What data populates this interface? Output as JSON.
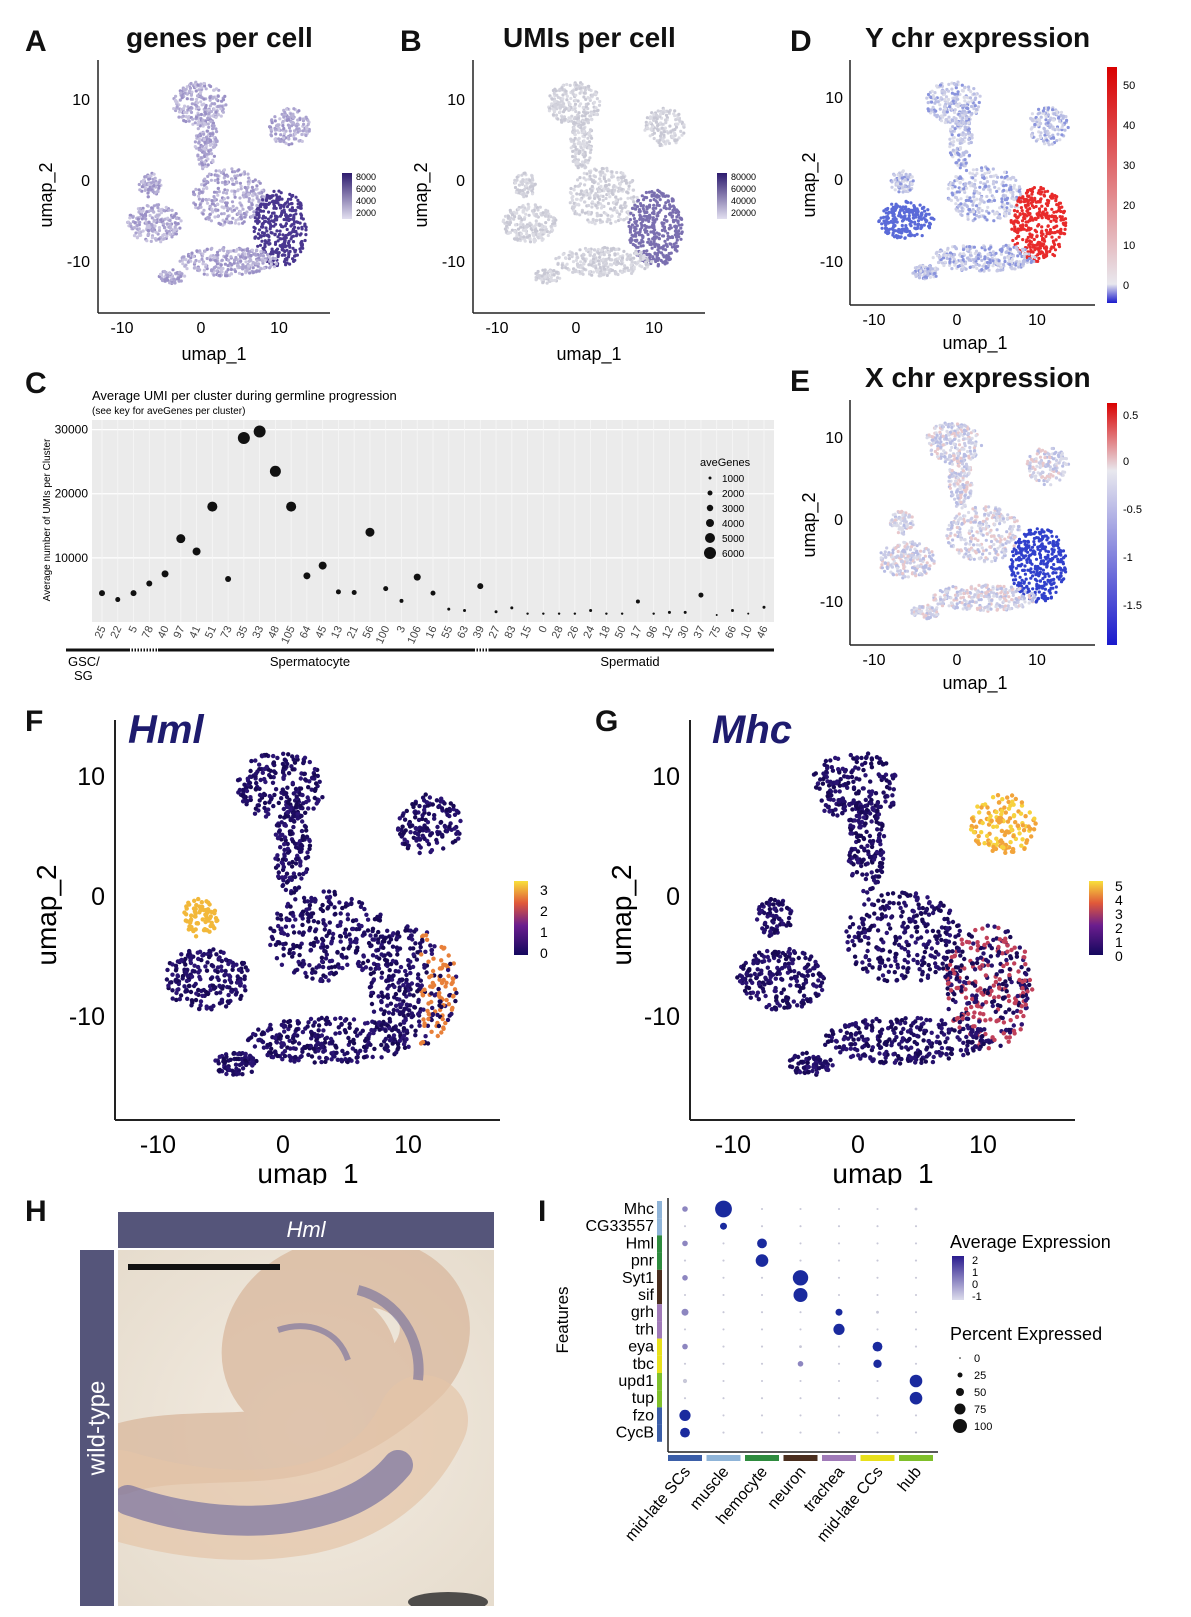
{
  "panels": {
    "A": {
      "label": "A",
      "title": "genes per cell",
      "xlabel": "umap_1",
      "ylabel": "umap_2",
      "xticks": [
        "-10",
        "0",
        "10"
      ],
      "yticks": [
        "10",
        "0",
        "-10"
      ],
      "legend": [
        "8000",
        "6000",
        "4000",
        "2000"
      ]
    },
    "B": {
      "label": "B",
      "title": "UMIs per cell",
      "xlabel": "umap_1",
      "ylabel": "umap_2",
      "xticks": [
        "-10",
        "0",
        "10"
      ],
      "yticks": [
        "10",
        "0",
        "-10"
      ],
      "legend": [
        "80000",
        "60000",
        "40000",
        "20000"
      ]
    },
    "D": {
      "label": "D",
      "title": "Y chr expression",
      "xlabel": "umap_1",
      "ylabel": "umap_2",
      "xticks": [
        "-10",
        "0",
        "10"
      ],
      "yticks": [
        "10",
        "0",
        "-10"
      ],
      "legend": [
        "50",
        "40",
        "30",
        "20",
        "10",
        "0"
      ]
    },
    "E": {
      "label": "E",
      "title": "X chr expression",
      "xlabel": "umap_1",
      "ylabel": "umap_2",
      "xticks": [
        "-10",
        "0",
        "10"
      ],
      "yticks": [
        "10",
        "0",
        "-10"
      ],
      "legend": [
        "0.5",
        "0",
        "-0.5",
        "-1",
        "-1.5"
      ]
    },
    "F": {
      "label": "F",
      "gene": "Hml",
      "xlabel": "umap_1",
      "ylabel": "umap_2",
      "xticks": [
        "-10",
        "0",
        "10"
      ],
      "yticks": [
        "10",
        "0",
        "-10"
      ],
      "legend": [
        "3",
        "2",
        "1",
        "0"
      ]
    },
    "G": {
      "label": "G",
      "gene": "Mhc",
      "xlabel": "umap_1",
      "ylabel": "umap_2",
      "xticks": [
        "-10",
        "0",
        "10"
      ],
      "yticks": [
        "10",
        "0",
        "-10"
      ],
      "legend": [
        "5",
        "4",
        "3",
        "2",
        "1",
        "0"
      ]
    },
    "H": {
      "label": "H",
      "header": "Hml",
      "side": "wild-type"
    },
    "I": {
      "label": "I"
    },
    "C": {
      "label": "C"
    }
  },
  "chart_data": [
    {
      "type": "scatter",
      "panel": "C",
      "title": "Average UMI per cluster during germline progression",
      "subtitle": "(see key for aveGenes per cluster)",
      "ylabel": "Average number of UMIs per Cluster",
      "yticks": [
        "30000",
        "20000",
        "10000"
      ],
      "ylim": [
        0,
        31500
      ],
      "size_legend_title": "aveGenes",
      "size_legend": [
        "1000",
        "2000",
        "3000",
        "4000",
        "5000",
        "6000"
      ],
      "categories": [
        "25",
        "22",
        "5",
        "78",
        "40",
        "97",
        "41",
        "51",
        "73",
        "35",
        "33",
        "48",
        "105",
        "64",
        "45",
        "13",
        "21",
        "56",
        "100",
        "3",
        "106",
        "16",
        "55",
        "63",
        "39",
        "27",
        "83",
        "15",
        "0",
        "28",
        "26",
        "24",
        "18",
        "50",
        "17",
        "96",
        "12",
        "30",
        "37",
        "75",
        "66",
        "10",
        "46"
      ],
      "values": [
        4500,
        3500,
        4500,
        6000,
        7500,
        13000,
        11000,
        18000,
        6700,
        28700,
        29700,
        23500,
        18000,
        7200,
        8800,
        4700,
        4600,
        14000,
        5200,
        3300,
        7000,
        4500,
        2000,
        1800,
        5600,
        1600,
        2200,
        1300,
        1300,
        1300,
        1300,
        1800,
        1300,
        1300,
        3200,
        1300,
        1500,
        1500,
        4200,
        1100,
        1800,
        1300,
        2300
      ],
      "sizes": [
        3,
        2.5,
        3,
        3,
        3.5,
        4.5,
        4,
        5,
        3,
        6,
        6,
        5.5,
        5,
        3.5,
        4,
        2.5,
        2.5,
        4.5,
        2.5,
        2,
        3.5,
        2.5,
        1.5,
        1.5,
        3,
        1.5,
        1.5,
        1.2,
        1.2,
        1.2,
        1.2,
        1.5,
        1.2,
        1.2,
        2,
        1.2,
        1.5,
        1.5,
        2.5,
        1,
        1.5,
        1,
        1.5
      ],
      "stages": [
        "GSC/\nSG",
        "Spermatocyte",
        "Spermatid"
      ]
    },
    {
      "type": "scatter",
      "panel": "I",
      "subtype": "dotplot",
      "ylabel": "Features",
      "features": [
        "Mhc",
        "CG33557",
        "Hml",
        "pnr",
        "Syt1",
        "sif",
        "grh",
        "trh",
        "eya",
        "tbc",
        "upd1",
        "tup",
        "fzo",
        "CycB"
      ],
      "groups": [
        "mid-late SCs",
        "muscle",
        "hemocyte",
        "neuron",
        "trachea",
        "mid-late CCs",
        "hub"
      ],
      "group_colors": [
        "#3b5ea8",
        "#8fb4d8",
        "#2e8b3e",
        "#4a2e1e",
        "#a07ab8",
        "#e8e01a",
        "#7fbf2a"
      ],
      "legend_expr_title": "Average Expression",
      "legend_expr": [
        "2",
        "1",
        "0",
        "-1"
      ],
      "legend_pct_title": "Percent Expressed",
      "legend_pct": [
        "0",
        "25",
        "50",
        "75",
        "100"
      ],
      "matrix": [
        [
          {
            "s": 4,
            "c": 0.5
          },
          {
            "s": 12,
            "c": 1
          },
          {
            "s": 1.5,
            "c": 0.2
          },
          {
            "s": 1.5,
            "c": 0.2
          },
          {
            "s": 1.5,
            "c": 0.2
          },
          {
            "s": 1.5,
            "c": 0.2
          },
          {
            "s": 2,
            "c": 0.2
          }
        ],
        [
          {
            "s": 1.5,
            "c": 0.2
          },
          {
            "s": 5,
            "c": 1
          },
          {
            "s": 1.5,
            "c": 0.2
          },
          {
            "s": 1.5,
            "c": 0.2
          },
          {
            "s": 1.5,
            "c": 0.2
          },
          {
            "s": 1.5,
            "c": 0.2
          },
          {
            "s": 1.5,
            "c": 0.2
          }
        ],
        [
          {
            "s": 4,
            "c": 0.4
          },
          {
            "s": 1.5,
            "c": 0.2
          },
          {
            "s": 7,
            "c": 1
          },
          {
            "s": 1.5,
            "c": 0.2
          },
          {
            "s": 1.5,
            "c": 0.2
          },
          {
            "s": 1.5,
            "c": 0.2
          },
          {
            "s": 1.5,
            "c": 0.2
          }
        ],
        [
          {
            "s": 1.5,
            "c": 0.2
          },
          {
            "s": 1.5,
            "c": 0.2
          },
          {
            "s": 9,
            "c": 1
          },
          {
            "s": 1.5,
            "c": 0.2
          },
          {
            "s": 1.5,
            "c": 0.2
          },
          {
            "s": 1.5,
            "c": 0.2
          },
          {
            "s": 1.5,
            "c": 0.2
          }
        ],
        [
          {
            "s": 4,
            "c": 0.4
          },
          {
            "s": 1.5,
            "c": 0.2
          },
          {
            "s": 1.5,
            "c": 0.2
          },
          {
            "s": 11,
            "c": 1
          },
          {
            "s": 1.5,
            "c": 0.2
          },
          {
            "s": 1.5,
            "c": 0.2
          },
          {
            "s": 1.5,
            "c": 0.2
          }
        ],
        [
          {
            "s": 1.5,
            "c": 0.2
          },
          {
            "s": 1.5,
            "c": 0.2
          },
          {
            "s": 1.5,
            "c": 0.2
          },
          {
            "s": 10,
            "c": 1
          },
          {
            "s": 1.5,
            "c": 0.2
          },
          {
            "s": 1.5,
            "c": 0.2
          },
          {
            "s": 1.5,
            "c": 0.2
          }
        ],
        [
          {
            "s": 5,
            "c": 0.5
          },
          {
            "s": 1.5,
            "c": 0.2
          },
          {
            "s": 1.5,
            "c": 0.2
          },
          {
            "s": 1.5,
            "c": 0.2
          },
          {
            "s": 5,
            "c": 0.9
          },
          {
            "s": 2,
            "c": 0.3
          },
          {
            "s": 1.5,
            "c": 0.2
          }
        ],
        [
          {
            "s": 1.5,
            "c": 0.2
          },
          {
            "s": 1.5,
            "c": 0.2
          },
          {
            "s": 1.5,
            "c": 0.2
          },
          {
            "s": 1.5,
            "c": 0.2
          },
          {
            "s": 8,
            "c": 1
          },
          {
            "s": 1.5,
            "c": 0.2
          },
          {
            "s": 1.5,
            "c": 0.2
          }
        ],
        [
          {
            "s": 4,
            "c": 0.4
          },
          {
            "s": 1.5,
            "c": 0.2
          },
          {
            "s": 1.5,
            "c": 0.2
          },
          {
            "s": 2,
            "c": 0.3
          },
          {
            "s": 1.5,
            "c": 0.2
          },
          {
            "s": 7,
            "c": 1
          },
          {
            "s": 1.5,
            "c": 0.2
          }
        ],
        [
          {
            "s": 1.5,
            "c": 0.2
          },
          {
            "s": 1.5,
            "c": 0.2
          },
          {
            "s": 1.5,
            "c": 0.2
          },
          {
            "s": 4,
            "c": 0.5
          },
          {
            "s": 1.5,
            "c": 0.2
          },
          {
            "s": 6,
            "c": 1
          },
          {
            "s": 1.5,
            "c": 0.2
          }
        ],
        [
          {
            "s": 3,
            "c": 0.3
          },
          {
            "s": 1.5,
            "c": 0.2
          },
          {
            "s": 1.5,
            "c": 0.2
          },
          {
            "s": 1.5,
            "c": 0.2
          },
          {
            "s": 1.5,
            "c": 0.2
          },
          {
            "s": 1.5,
            "c": 0.2
          },
          {
            "s": 9,
            "c": 1
          }
        ],
        [
          {
            "s": 1.5,
            "c": 0.2
          },
          {
            "s": 1.5,
            "c": 0.2
          },
          {
            "s": 1.5,
            "c": 0.2
          },
          {
            "s": 1.5,
            "c": 0.2
          },
          {
            "s": 1.5,
            "c": 0.2
          },
          {
            "s": 1.5,
            "c": 0.2
          },
          {
            "s": 9,
            "c": 1
          }
        ],
        [
          {
            "s": 8,
            "c": 1
          },
          {
            "s": 1.5,
            "c": 0.2
          },
          {
            "s": 1.5,
            "c": 0.2
          },
          {
            "s": 1.5,
            "c": 0.2
          },
          {
            "s": 1.5,
            "c": 0.2
          },
          {
            "s": 1.5,
            "c": 0.2
          },
          {
            "s": 1.5,
            "c": 0.2
          }
        ],
        [
          {
            "s": 7,
            "c": 1
          },
          {
            "s": 1.5,
            "c": 0.2
          },
          {
            "s": 1.5,
            "c": 0.2
          },
          {
            "s": 1.5,
            "c": 0.2
          },
          {
            "s": 1.5,
            "c": 0.2
          },
          {
            "s": 1.5,
            "c": 0.2
          },
          {
            "s": 1.5,
            "c": 0.2
          }
        ]
      ]
    }
  ]
}
